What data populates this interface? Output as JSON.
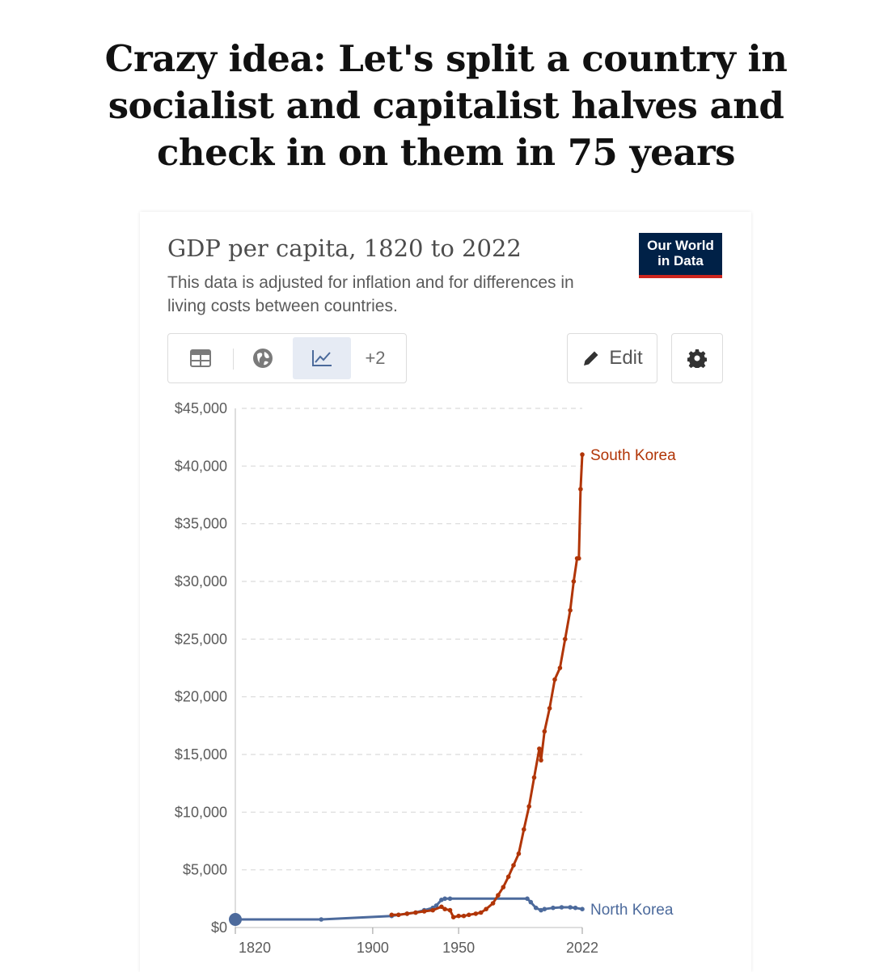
{
  "headline": {
    "line1": "Crazy idea: Let's split a country in",
    "line2": "socialist and capitalist halves and",
    "line3": "check in on them in 75 years"
  },
  "card": {
    "title": "GDP per capita, 1820 to 2022",
    "subtitle": "This data is adjusted for inflation and for differences in living costs between countries.",
    "logo_line1": "Our World",
    "logo_line2": "in Data",
    "more_tabs_label": "+2",
    "edit_label": "Edit",
    "tab_icons": [
      "table-icon",
      "globe-icon",
      "line-chart-icon"
    ],
    "settings_icon": "gear-icon",
    "colors": {
      "south_korea": "#b13507",
      "north_korea": "#4c6a9c",
      "logo_bg": "#002147",
      "logo_accent": "#ce261e"
    }
  },
  "chart_data": {
    "type": "line",
    "title": "GDP per capita, 1820 to 2022",
    "subtitle": "This data is adjusted for inflation and for differences in living costs between countries.",
    "xlim": [
      1820,
      2022
    ],
    "ylim": [
      0,
      45000
    ],
    "y_ticks": [
      0,
      5000,
      10000,
      15000,
      20000,
      25000,
      30000,
      35000,
      40000,
      45000
    ],
    "y_tick_labels": [
      "$0",
      "$5,000",
      "$10,000",
      "$15,000",
      "$20,000",
      "$25,000",
      "$30,000",
      "$35,000",
      "$40,000",
      "$45,000"
    ],
    "x_tick_labels": [
      "1820",
      "1900",
      "1950",
      "2022"
    ],
    "x_ticks": [
      1820,
      1900,
      1950,
      2022
    ],
    "grid": "horizontal dashed",
    "series": [
      {
        "name": "North Korea",
        "color": "#4c6a9c",
        "points": [
          [
            1820,
            700
          ],
          [
            1870,
            700
          ],
          [
            1911,
            1000
          ],
          [
            1915,
            1100
          ],
          [
            1920,
            1200
          ],
          [
            1925,
            1300
          ],
          [
            1930,
            1500
          ],
          [
            1935,
            1700
          ],
          [
            1937,
            1900
          ],
          [
            1940,
            2400
          ],
          [
            1942,
            2500
          ],
          [
            1945,
            2500
          ],
          [
            1990,
            2500
          ],
          [
            1992,
            2200
          ],
          [
            1995,
            1700
          ],
          [
            1998,
            1500
          ],
          [
            2000,
            1600
          ],
          [
            2005,
            1700
          ],
          [
            2010,
            1750
          ],
          [
            2015,
            1750
          ],
          [
            2018,
            1700
          ],
          [
            2022,
            1600
          ]
        ]
      },
      {
        "name": "South Korea",
        "color": "#b13507",
        "points": [
          [
            1911,
            1100
          ],
          [
            1915,
            1100
          ],
          [
            1920,
            1200
          ],
          [
            1925,
            1300
          ],
          [
            1930,
            1400
          ],
          [
            1935,
            1500
          ],
          [
            1940,
            1800
          ],
          [
            1942,
            1600
          ],
          [
            1945,
            1500
          ],
          [
            1947,
            900
          ],
          [
            1950,
            1000
          ],
          [
            1953,
            1000
          ],
          [
            1956,
            1100
          ],
          [
            1960,
            1200
          ],
          [
            1963,
            1300
          ],
          [
            1966,
            1600
          ],
          [
            1970,
            2100
          ],
          [
            1973,
            2800
          ],
          [
            1976,
            3500
          ],
          [
            1979,
            4400
          ],
          [
            1982,
            5400
          ],
          [
            1985,
            6400
          ],
          [
            1988,
            8500
          ],
          [
            1991,
            10500
          ],
          [
            1994,
            13000
          ],
          [
            1997,
            15500
          ],
          [
            1998,
            14500
          ],
          [
            2000,
            17000
          ],
          [
            2003,
            19000
          ],
          [
            2006,
            21500
          ],
          [
            2009,
            22500
          ],
          [
            2012,
            25000
          ],
          [
            2015,
            27500
          ],
          [
            2017,
            30000
          ],
          [
            2019,
            32000
          ],
          [
            2020,
            32000
          ],
          [
            2021,
            38000
          ],
          [
            2022,
            41000
          ]
        ]
      }
    ]
  }
}
